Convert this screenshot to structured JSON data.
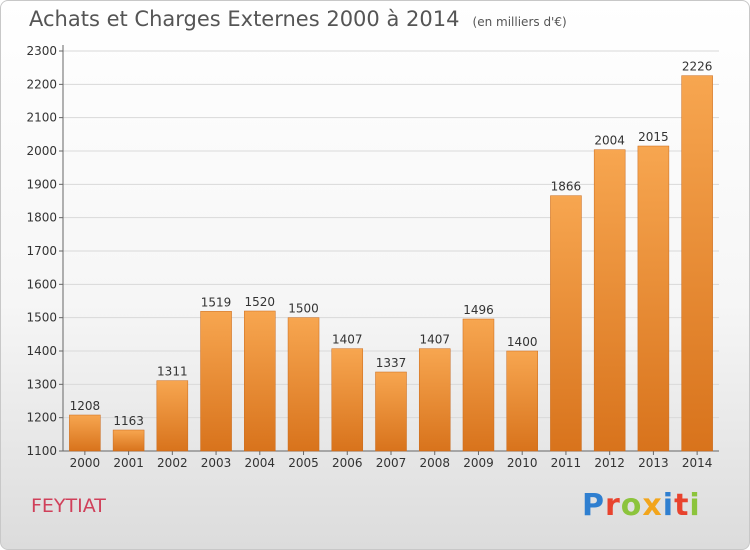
{
  "header": {
    "title": "Achats et Charges Externes 2000 à 2014",
    "subtitle": "(en milliers d'€)"
  },
  "footer": {
    "city": "FEYTIAT",
    "logo_letters": [
      "P",
      "r",
      "o",
      "x",
      "i",
      "t",
      "i"
    ],
    "logo_colors": [
      "#2f7fd0",
      "#e8432e",
      "#8cc43c",
      "#f2a51c",
      "#2f7fd0",
      "#e8432e",
      "#8cc43c"
    ]
  },
  "chart_data": {
    "type": "bar",
    "title": "Achats et Charges Externes 2000 à 2014",
    "subtitle": "(en milliers d'€)",
    "categories": [
      "2000",
      "2001",
      "2002",
      "2003",
      "2004",
      "2005",
      "2006",
      "2007",
      "2008",
      "2009",
      "2010",
      "2011",
      "2012",
      "2013",
      "2014"
    ],
    "values": [
      1208,
      1163,
      1311,
      1519,
      1520,
      1500,
      1407,
      1337,
      1407,
      1496,
      1400,
      1866,
      2004,
      2015,
      2226
    ],
    "ylim": [
      1100,
      2300
    ],
    "yticks": [
      1100,
      1200,
      1300,
      1400,
      1500,
      1600,
      1700,
      1800,
      1900,
      2000,
      2100,
      2200,
      2300
    ],
    "grid": true,
    "bar_color_light": "#f7a650",
    "bar_color_dark": "#d8731c",
    "grid_color": "#d9d9d9"
  }
}
